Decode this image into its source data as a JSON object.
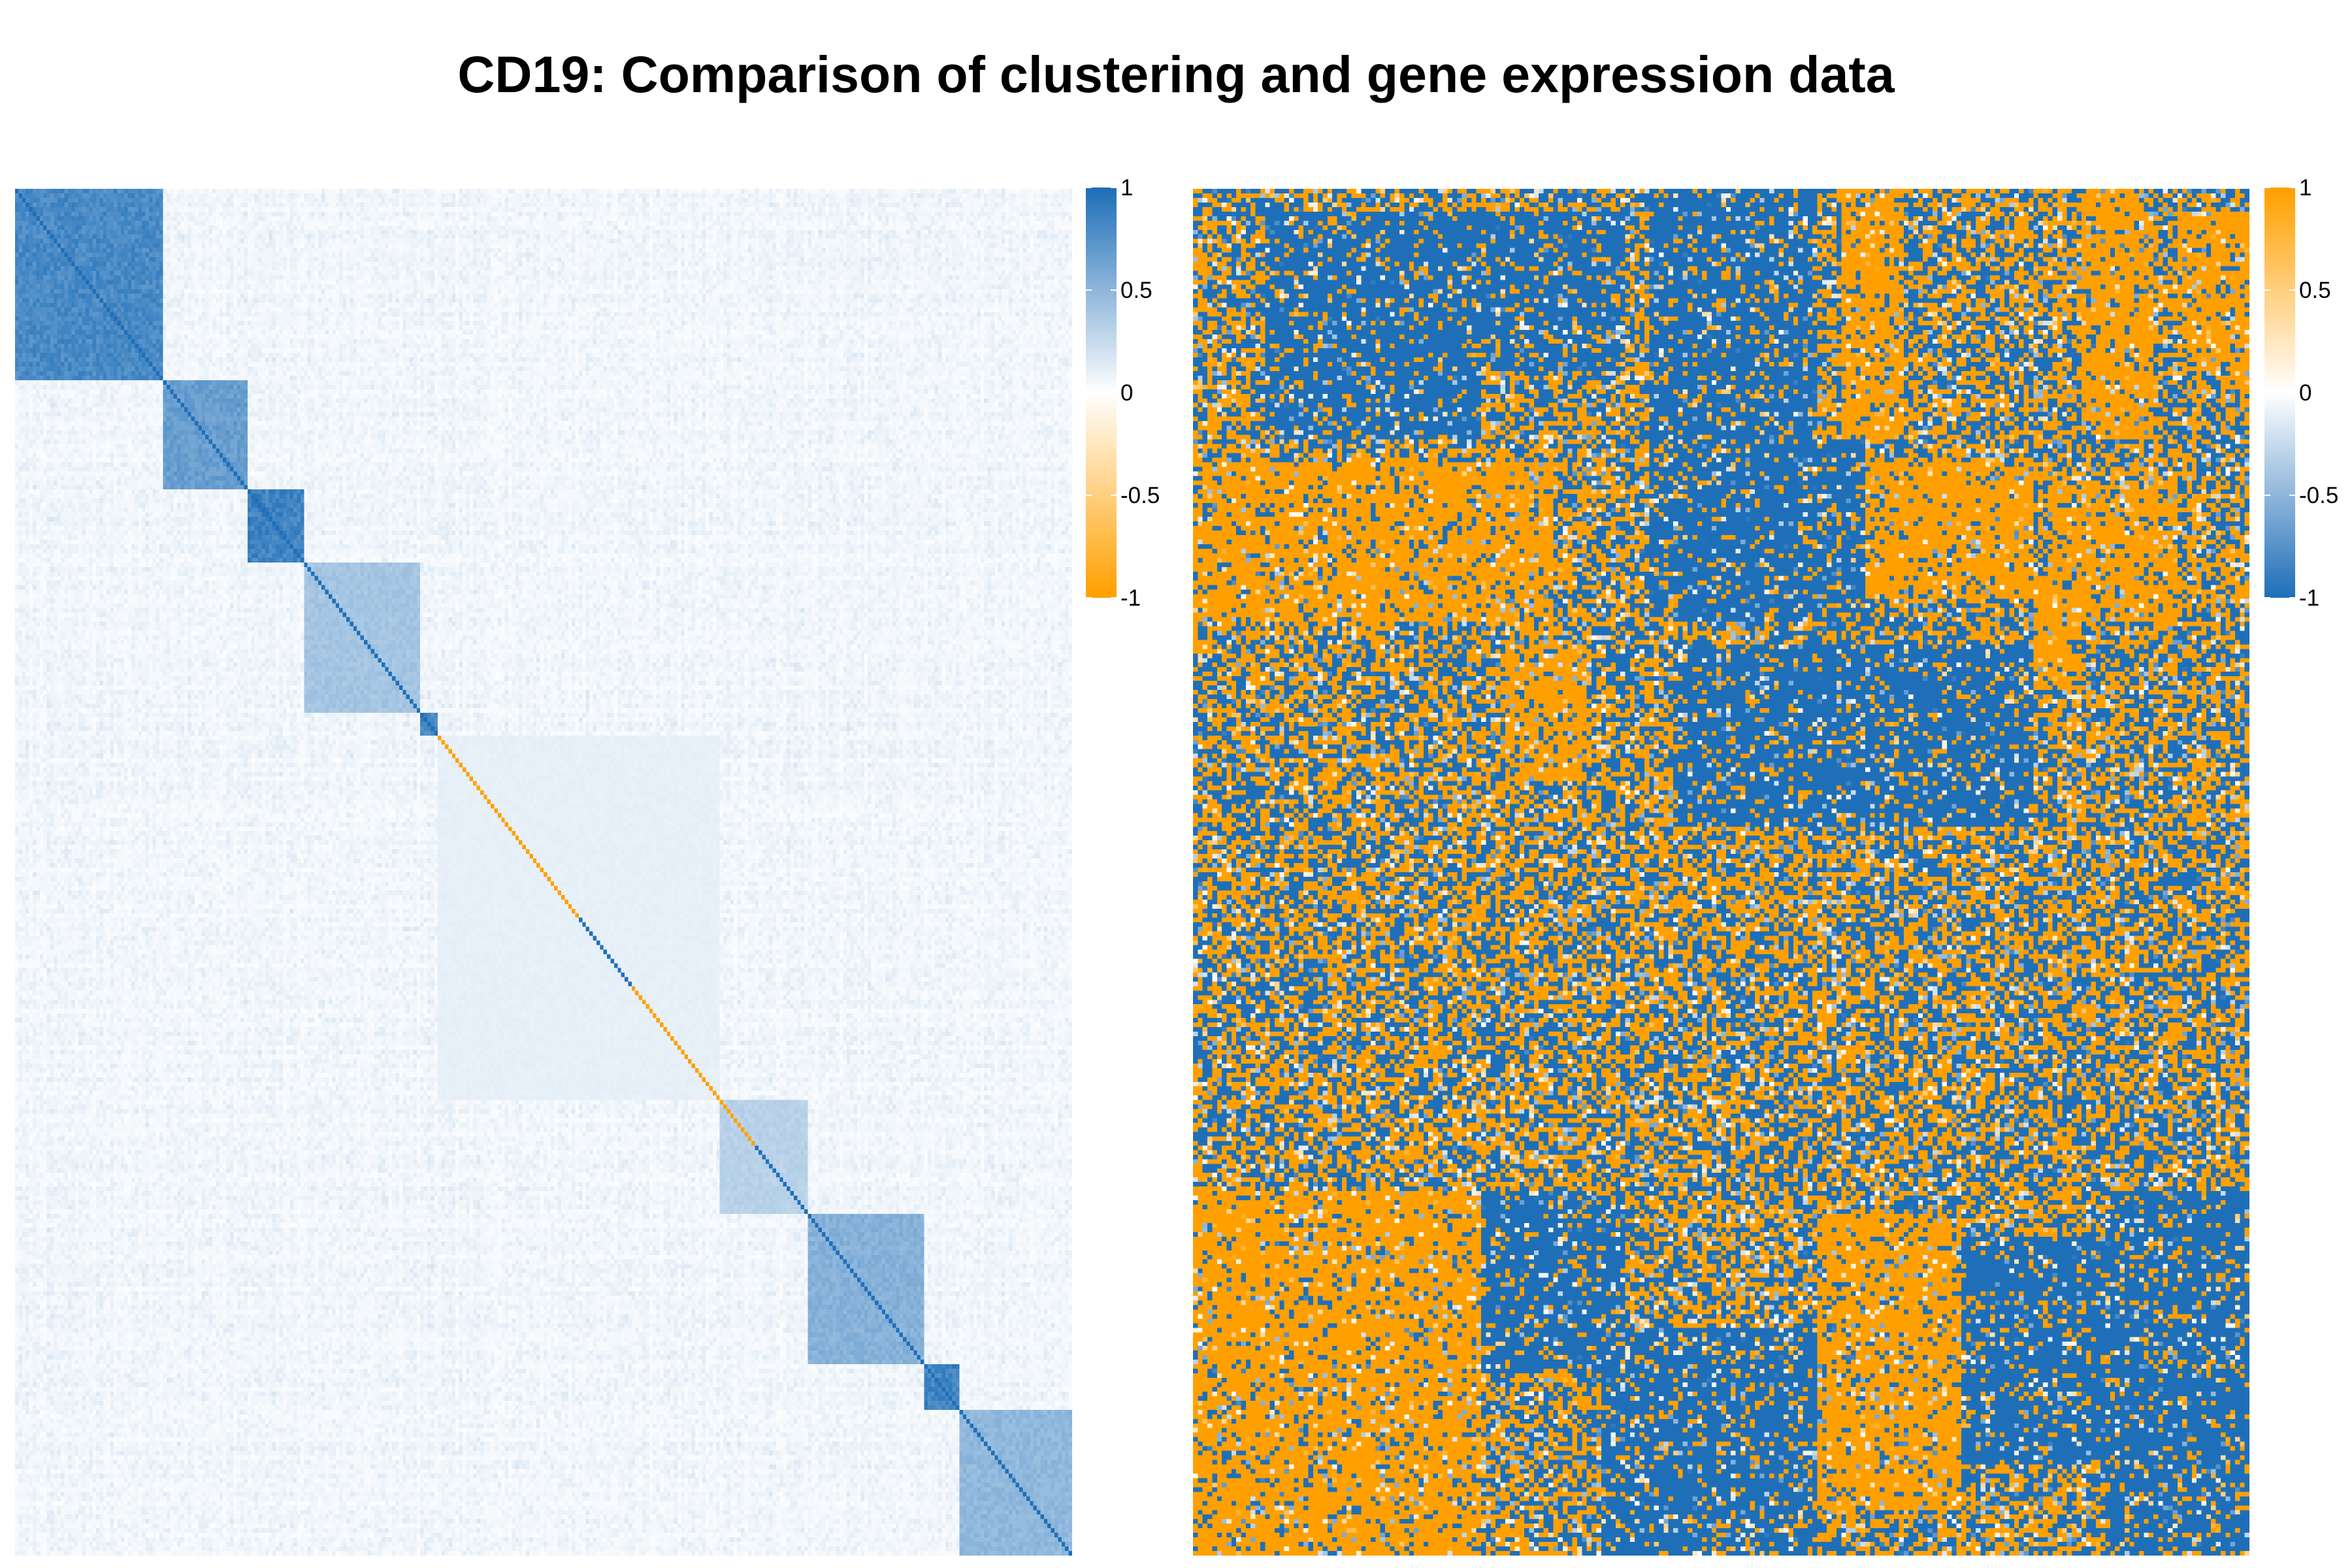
{
  "title": "CD19: Comparison of clustering and gene expression data",
  "colors": {
    "blue": "#1f6fb8",
    "white": "#ffffff",
    "orange": "#ffa000"
  },
  "chart_data": [
    {
      "type": "heatmap",
      "panel": "left",
      "matrix": "symmetric correlation of clustering, ordered by cluster",
      "n": 300,
      "colorbar": {
        "ticks": [
          1,
          0.5,
          0,
          -0.5,
          -1
        ],
        "min": -1,
        "max": 1,
        "high_color": "#1f6fb8",
        "mid_color": "#ffffff",
        "low_color": "#ffa000"
      },
      "clusters": [
        {
          "start": 0,
          "end": 42,
          "within": 0.9
        },
        {
          "start": 42,
          "end": 66,
          "within": 0.75
        },
        {
          "start": 66,
          "end": 82,
          "within": 0.95
        },
        {
          "start": 82,
          "end": 115,
          "within": 0.45
        },
        {
          "start": 115,
          "end": 120,
          "within": 0.9
        },
        {
          "start": 120,
          "end": 200,
          "within": 0.12
        },
        {
          "start": 200,
          "end": 225,
          "within": 0.35
        },
        {
          "start": 225,
          "end": 258,
          "within": 0.6
        },
        {
          "start": 258,
          "end": 268,
          "within": 0.95
        },
        {
          "start": 268,
          "end": 300,
          "within": 0.55
        }
      ],
      "diagonal_segments": [
        {
          "start": 0,
          "end": 120,
          "value": 1
        },
        {
          "start": 120,
          "end": 160,
          "value": -1
        },
        {
          "start": 160,
          "end": 175,
          "value": 1
        },
        {
          "start": 175,
          "end": 210,
          "value": -1
        },
        {
          "start": 210,
          "end": 300,
          "value": 1
        }
      ]
    },
    {
      "type": "heatmap",
      "panel": "right",
      "matrix": "gene expression data",
      "rows": 300,
      "cols": 220,
      "colorbar": {
        "ticks": [
          1,
          0.5,
          0,
          -0.5,
          -1
        ],
        "min": -1,
        "max": 1,
        "high_color": "#ffa000",
        "mid_color": "#ffffff",
        "low_color": "#1f6fb8"
      },
      "blocks": [
        {
          "r0": 5,
          "r1": 55,
          "c0": 15,
          "c1": 60,
          "sign": -1
        },
        {
          "r0": 5,
          "r1": 40,
          "c0": 60,
          "c1": 90,
          "sign": -1
        },
        {
          "r0": 0,
          "r1": 55,
          "c0": 95,
          "c1": 130,
          "sign": -1
        },
        {
          "r0": 0,
          "r1": 55,
          "c0": 135,
          "c1": 148,
          "sign": 1
        },
        {
          "r0": 0,
          "r1": 55,
          "c0": 185,
          "c1": 200,
          "sign": 1
        },
        {
          "r0": 5,
          "r1": 40,
          "c0": 205,
          "c1": 220,
          "sign": 1
        },
        {
          "r0": 60,
          "r1": 95,
          "c0": 0,
          "c1": 75,
          "sign": 1
        },
        {
          "r0": 55,
          "r1": 95,
          "c0": 95,
          "c1": 140,
          "sign": -1
        },
        {
          "r0": 60,
          "r1": 90,
          "c0": 140,
          "c1": 175,
          "sign": 1
        },
        {
          "r0": 65,
          "r1": 95,
          "c0": 178,
          "c1": 205,
          "sign": 1
        },
        {
          "r0": 100,
          "r1": 130,
          "c0": 65,
          "c1": 82,
          "sign": 1
        },
        {
          "r0": 100,
          "r1": 140,
          "c0": 100,
          "c1": 175,
          "sign": -1
        },
        {
          "r0": 85,
          "r1": 110,
          "c0": 175,
          "c1": 185,
          "sign": 1
        },
        {
          "r0": 220,
          "r1": 300,
          "c0": 0,
          "c1": 60,
          "sign": 1
        },
        {
          "r0": 220,
          "r1": 260,
          "c0": 60,
          "c1": 90,
          "sign": -1
        },
        {
          "r0": 250,
          "r1": 300,
          "c0": 85,
          "c1": 130,
          "sign": -1
        },
        {
          "r0": 225,
          "r1": 290,
          "c0": 130,
          "c1": 160,
          "sign": 1
        },
        {
          "r0": 220,
          "r1": 300,
          "c0": 190,
          "c1": 220,
          "sign": -1
        },
        {
          "r0": 230,
          "r1": 280,
          "c0": 160,
          "c1": 195,
          "sign": -1
        },
        {
          "r0": 260,
          "r1": 300,
          "c0": 0,
          "c1": 25,
          "sign": 1
        }
      ]
    }
  ]
}
